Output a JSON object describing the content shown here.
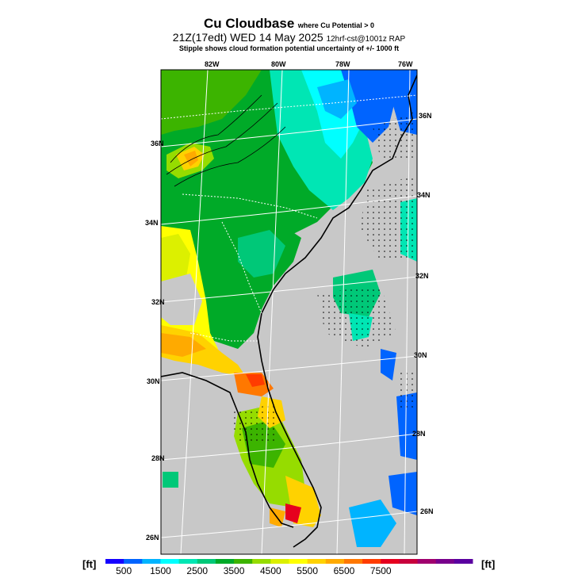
{
  "header": {
    "title": "Cu Cloudbase",
    "title_note": "where Cu Potential > 0",
    "valid_time": "21Z(17edt) WED 14 May 2025",
    "run_info": "12hrf-cst@1001z RAP",
    "stipple_note": "Stipple shows cloud formation potential uncertainty of +/- 1000 ft"
  },
  "map": {
    "top_lon_labels": [
      "82W",
      "80W",
      "78W",
      "76W"
    ],
    "left_lat_labels": [
      "36N",
      "34N",
      "32N",
      "30N",
      "28N",
      "26N"
    ],
    "right_lat_labels": [
      "36N",
      "34N",
      "32N",
      "30N",
      "28N",
      "26N"
    ],
    "land_no_cu_color": "#c8c8c8",
    "coastline_color": "#000000",
    "grid_color": "#ffffff"
  },
  "colorbar": {
    "unit_left": "[ft]",
    "unit_right": "[ft]",
    "tick_labels": [
      "500",
      "1500",
      "2500",
      "3500",
      "4500",
      "5500",
      "6500",
      "7500"
    ],
    "colors": [
      "#1400ff",
      "#0064ff",
      "#00b4ff",
      "#00ffff",
      "#00e6b4",
      "#00c878",
      "#00aa28",
      "#3cb400",
      "#96dc00",
      "#dcf000",
      "#ffff00",
      "#ffd200",
      "#ffaa00",
      "#ff7800",
      "#ff3c00",
      "#e6001e",
      "#c8003c",
      "#a0006e",
      "#78008c",
      "#5a00a0"
    ]
  }
}
